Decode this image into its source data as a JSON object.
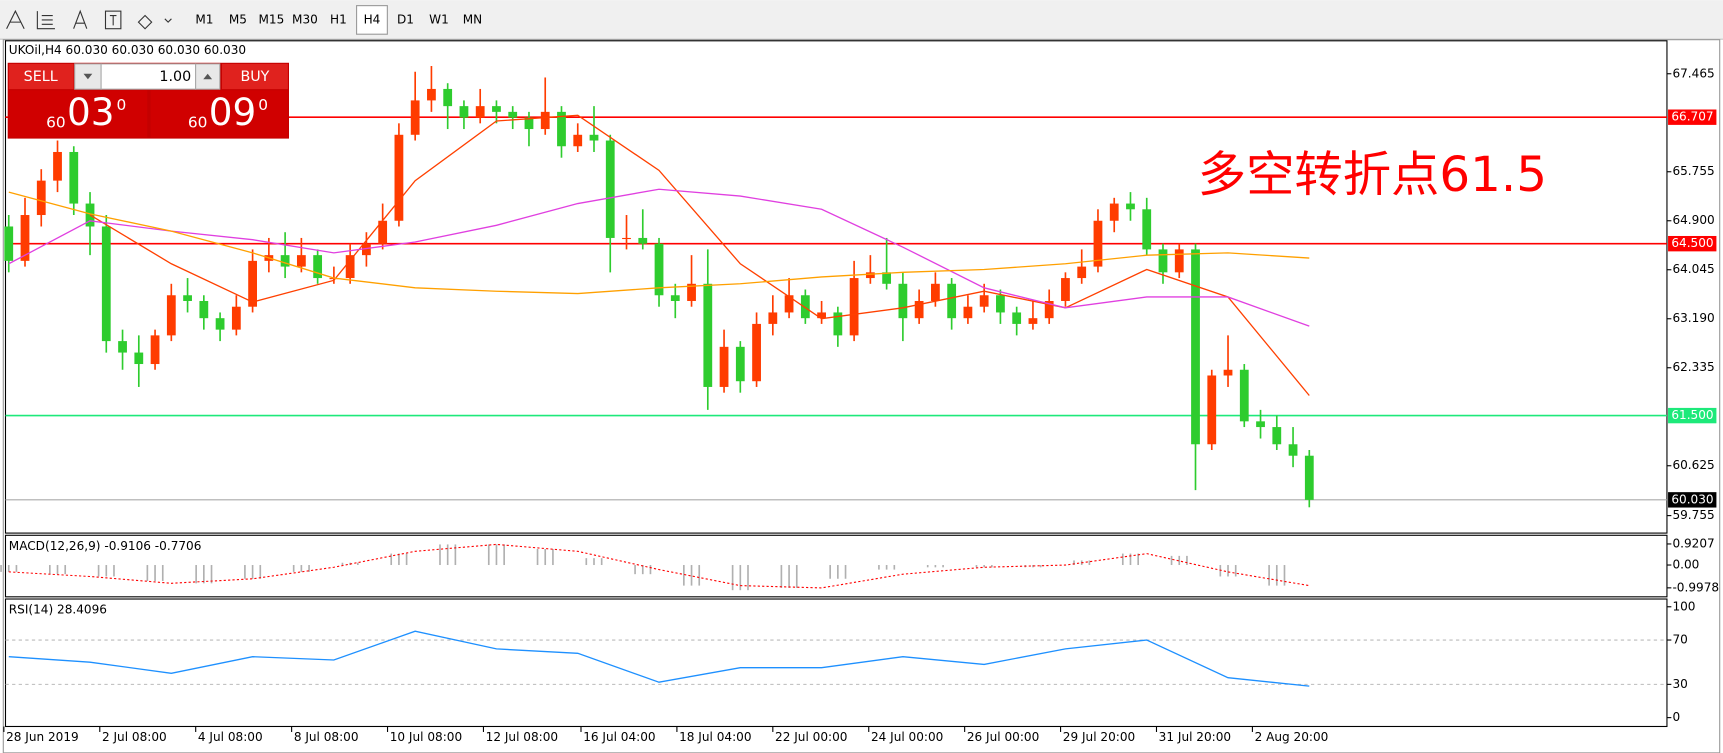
{
  "toolbar": {
    "timeframes": [
      "M1",
      "M5",
      "M15",
      "M30",
      "H1",
      "H4",
      "D1",
      "W1",
      "MN"
    ],
    "active": "H4"
  },
  "trade_panel": {
    "sell": "SELL",
    "buy": "BUY",
    "lot": "1.00",
    "bid_big": "60",
    "bid_main": "03",
    "bid_sup": "0",
    "ask_big": "60",
    "ask_main": "09",
    "ask_sup": "0"
  },
  "chart_data": {
    "type": "candlestick",
    "title": "UKOil,H4  60.030 60.030 60.030 60.030",
    "annotation": "多空转折点61.5",
    "bull_color": "#ff3c00",
    "bear_color": "#2ecc2e",
    "ohlc": [
      [
        64.8,
        65.0,
        64.0,
        64.2
      ],
      [
        64.2,
        65.3,
        64.1,
        65.0
      ],
      [
        65.0,
        65.8,
        64.8,
        65.6
      ],
      [
        65.6,
        66.3,
        65.4,
        66.1
      ],
      [
        66.1,
        66.2,
        65.0,
        65.2
      ],
      [
        65.2,
        65.4,
        64.3,
        64.8
      ],
      [
        64.8,
        65.0,
        62.6,
        62.8
      ],
      [
        62.8,
        63.0,
        62.3,
        62.6
      ],
      [
        62.6,
        62.9,
        62.0,
        62.4
      ],
      [
        62.4,
        63.0,
        62.3,
        62.9
      ],
      [
        62.9,
        63.8,
        62.8,
        63.6
      ],
      [
        63.6,
        63.9,
        63.3,
        63.5
      ],
      [
        63.5,
        63.6,
        63.0,
        63.2
      ],
      [
        63.2,
        63.3,
        62.8,
        63.0
      ],
      [
        63.0,
        63.6,
        62.9,
        63.4
      ],
      [
        63.4,
        64.4,
        63.3,
        64.2
      ],
      [
        64.2,
        64.6,
        64.0,
        64.3
      ],
      [
        64.3,
        64.7,
        63.9,
        64.1
      ],
      [
        64.1,
        64.6,
        64.0,
        64.3
      ],
      [
        64.3,
        64.4,
        63.8,
        63.9
      ],
      [
        63.9,
        64.1,
        63.8,
        63.9
      ],
      [
        63.9,
        64.5,
        63.8,
        64.3
      ],
      [
        64.3,
        64.7,
        64.1,
        64.5
      ],
      [
        64.5,
        65.2,
        64.4,
        64.9
      ],
      [
        64.9,
        66.6,
        64.8,
        66.4
      ],
      [
        66.4,
        67.5,
        66.3,
        67.0
      ],
      [
        67.0,
        67.6,
        66.8,
        67.2
      ],
      [
        67.2,
        67.3,
        66.5,
        66.9
      ],
      [
        66.9,
        67.0,
        66.5,
        66.7
      ],
      [
        66.7,
        67.2,
        66.6,
        66.9
      ],
      [
        66.9,
        67.0,
        66.6,
        66.8
      ],
      [
        66.8,
        66.9,
        66.5,
        66.7
      ],
      [
        66.7,
        66.8,
        66.2,
        66.5
      ],
      [
        66.5,
        67.4,
        66.4,
        66.8
      ],
      [
        66.8,
        66.9,
        66.0,
        66.2
      ],
      [
        66.2,
        66.6,
        66.1,
        66.4
      ],
      [
        66.4,
        66.9,
        66.1,
        66.3
      ],
      [
        66.3,
        66.4,
        64.0,
        64.6
      ],
      [
        64.6,
        65.0,
        64.4,
        64.6
      ],
      [
        64.6,
        65.1,
        64.4,
        64.5
      ],
      [
        64.5,
        64.6,
        63.4,
        63.6
      ],
      [
        63.6,
        63.8,
        63.2,
        63.5
      ],
      [
        63.5,
        64.3,
        63.4,
        63.8
      ],
      [
        63.8,
        64.4,
        61.6,
        62.0
      ],
      [
        62.0,
        63.0,
        61.9,
        62.7
      ],
      [
        62.7,
        62.8,
        61.9,
        62.1
      ],
      [
        62.1,
        63.3,
        62.0,
        63.1
      ],
      [
        63.1,
        63.6,
        62.9,
        63.3
      ],
      [
        63.3,
        63.9,
        63.2,
        63.6
      ],
      [
        63.6,
        63.7,
        63.1,
        63.2
      ],
      [
        63.2,
        63.5,
        63.1,
        63.3
      ],
      [
        63.3,
        63.4,
        62.7,
        62.9
      ],
      [
        62.9,
        64.2,
        62.8,
        63.9
      ],
      [
        63.9,
        64.3,
        63.8,
        64.0
      ],
      [
        64.0,
        64.6,
        63.7,
        63.8
      ],
      [
        63.8,
        64.0,
        62.8,
        63.2
      ],
      [
        63.2,
        63.7,
        63.1,
        63.5
      ],
      [
        63.5,
        64.0,
        63.4,
        63.8
      ],
      [
        63.8,
        63.9,
        63.0,
        63.2
      ],
      [
        63.2,
        63.6,
        63.1,
        63.4
      ],
      [
        63.4,
        63.8,
        63.3,
        63.6
      ],
      [
        63.6,
        63.7,
        63.1,
        63.3
      ],
      [
        63.3,
        63.4,
        62.9,
        63.1
      ],
      [
        63.1,
        63.5,
        63.0,
        63.2
      ],
      [
        63.2,
        63.7,
        63.1,
        63.5
      ],
      [
        63.5,
        64.0,
        63.4,
        63.9
      ],
      [
        63.9,
        64.4,
        63.8,
        64.1
      ],
      [
        64.1,
        65.1,
        64.0,
        64.9
      ],
      [
        64.9,
        65.3,
        64.7,
        65.2
      ],
      [
        65.2,
        65.4,
        64.9,
        65.1
      ],
      [
        65.1,
        65.3,
        64.3,
        64.4
      ],
      [
        64.4,
        64.5,
        63.8,
        64.0
      ],
      [
        64.0,
        64.5,
        63.9,
        64.4
      ],
      [
        64.4,
        64.5,
        60.2,
        61.0
      ],
      [
        61.0,
        62.3,
        60.9,
        62.2
      ],
      [
        62.2,
        62.9,
        62.0,
        62.3
      ],
      [
        62.3,
        62.4,
        61.3,
        61.4
      ],
      [
        61.4,
        61.6,
        61.1,
        61.3
      ],
      [
        61.3,
        61.5,
        60.9,
        61.0
      ],
      [
        61.0,
        61.3,
        60.6,
        60.8
      ],
      [
        60.8,
        60.9,
        59.9,
        60.03
      ]
    ],
    "xlim": [
      -0.2,
      102
    ],
    "xticks": [
      {
        "value": -0.3,
        "label": "28 Jun 2019"
      },
      {
        "value": 5.6,
        "label": "2 Jul 08:00"
      },
      {
        "value": 11.5,
        "label": "4 Jul 08:00"
      },
      {
        "value": 17.4,
        "label": "8 Jul 08:00"
      },
      {
        "value": 23.3,
        "label": "10 Jul 08:00"
      },
      {
        "value": 29.2,
        "label": "12 Jul 08:00"
      },
      {
        "value": 35.2,
        "label": "16 Jul 04:00"
      },
      {
        "value": 41.1,
        "label": "18 Jul 04:00"
      },
      {
        "value": 47,
        "label": "22 Jul 00:00"
      },
      {
        "value": 52.9,
        "label": "24 Jul 00:00"
      },
      {
        "value": 58.8,
        "label": "26 Jul 00:00"
      },
      {
        "value": 64.7,
        "label": "29 Jul 20:00"
      },
      {
        "value": 70.6,
        "label": "31 Jul 20:00"
      },
      {
        "value": 76.5,
        "label": "2 Aug 20:00"
      }
    ],
    "ylim": [
      59.45,
      68.04
    ],
    "yticks": [
      67.465,
      65.755,
      {
        "value": 64.9,
        "label": "64.900"
      },
      64.045,
      {
        "value": 63.19,
        "label": "63.190"
      },
      62.335,
      60.625,
      59.755
    ],
    "levels": [
      {
        "value": 66.707,
        "color": "#ff0000"
      },
      {
        "value": 64.5,
        "label": "64.500",
        "color": "#ff0000"
      },
      {
        "value": 61.5,
        "label": "61.500",
        "color": "#1de97a"
      },
      {
        "value": 60.03,
        "label": "60.030",
        "color": "#000000"
      }
    ],
    "ma_x": [
      0,
      5,
      10,
      15,
      20,
      25,
      30,
      35,
      40,
      45,
      50,
      55,
      60,
      65,
      70,
      75,
      80
    ],
    "moving_averages": [
      {
        "color": "#ff4000",
        "values": [
          null,
          65.0,
          64.15,
          63.48,
          63.86,
          65.6,
          66.64,
          66.74,
          65.78,
          64.15,
          63.19,
          63.38,
          63.67,
          63.38,
          64.05,
          63.57,
          61.85
        ]
      },
      {
        "color": "#e040e0",
        "values": [
          64.15,
          64.9,
          64.72,
          64.57,
          64.34,
          64.53,
          64.82,
          65.2,
          65.45,
          65.33,
          65.1,
          64.44,
          63.73,
          63.38,
          63.57,
          63.57,
          63.06
        ]
      },
      {
        "color": "#ffa000",
        "values": [
          65.4,
          65.02,
          64.72,
          64.34,
          63.9,
          63.73,
          63.67,
          63.63,
          63.73,
          63.8,
          63.92,
          64.0,
          64.05,
          64.15,
          64.3,
          64.34,
          64.25
        ]
      }
    ],
    "macd": {
      "label": "MACD(12,26,9) -0.9106 -0.7706",
      "ylim": [
        -1.39,
        1.3
      ],
      "yticks": [
        0.9207,
        {
          "value": 0,
          "label": "0.00"
        },
        -0.9978
      ],
      "hist_x": [
        0,
        3,
        6,
        9,
        12,
        15,
        18,
        21,
        24,
        27,
        30,
        33,
        36,
        39,
        42,
        45,
        48,
        51,
        54,
        57,
        60,
        63,
        66,
        69,
        72,
        75,
        78
      ],
      "histogram": [
        -0.3,
        -0.4,
        -0.5,
        -0.7,
        -0.8,
        -0.6,
        -0.3,
        0.1,
        0.5,
        0.9,
        0.9,
        0.7,
        0.3,
        -0.4,
        -0.9,
        -1.1,
        -1.0,
        -0.6,
        -0.2,
        -0.1,
        -0.1,
        -0.1,
        0.2,
        0.5,
        0.4,
        -0.5,
        -0.9
      ],
      "signal": [
        -0.3,
        -0.5,
        -0.8,
        -0.6,
        -0.1,
        0.6,
        0.9,
        0.6,
        -0.2,
        -0.9,
        -1.0,
        -0.4,
        -0.1,
        0.0,
        0.5,
        -0.3,
        -0.9
      ],
      "signal_color": "#ff0000",
      "hist_color": "#b0b0b0"
    },
    "rsi": {
      "label": "RSI(14) 28.4096",
      "ylim": [
        -8,
        107
      ],
      "yticks": [
        100,
        70,
        30,
        0
      ],
      "levels": [
        70,
        30
      ],
      "color": "#1e90ff",
      "values": [
        55,
        50,
        40,
        55,
        52,
        78,
        62,
        58,
        32,
        45,
        45,
        55,
        48,
        62,
        70,
        36,
        28.4
      ]
    }
  }
}
